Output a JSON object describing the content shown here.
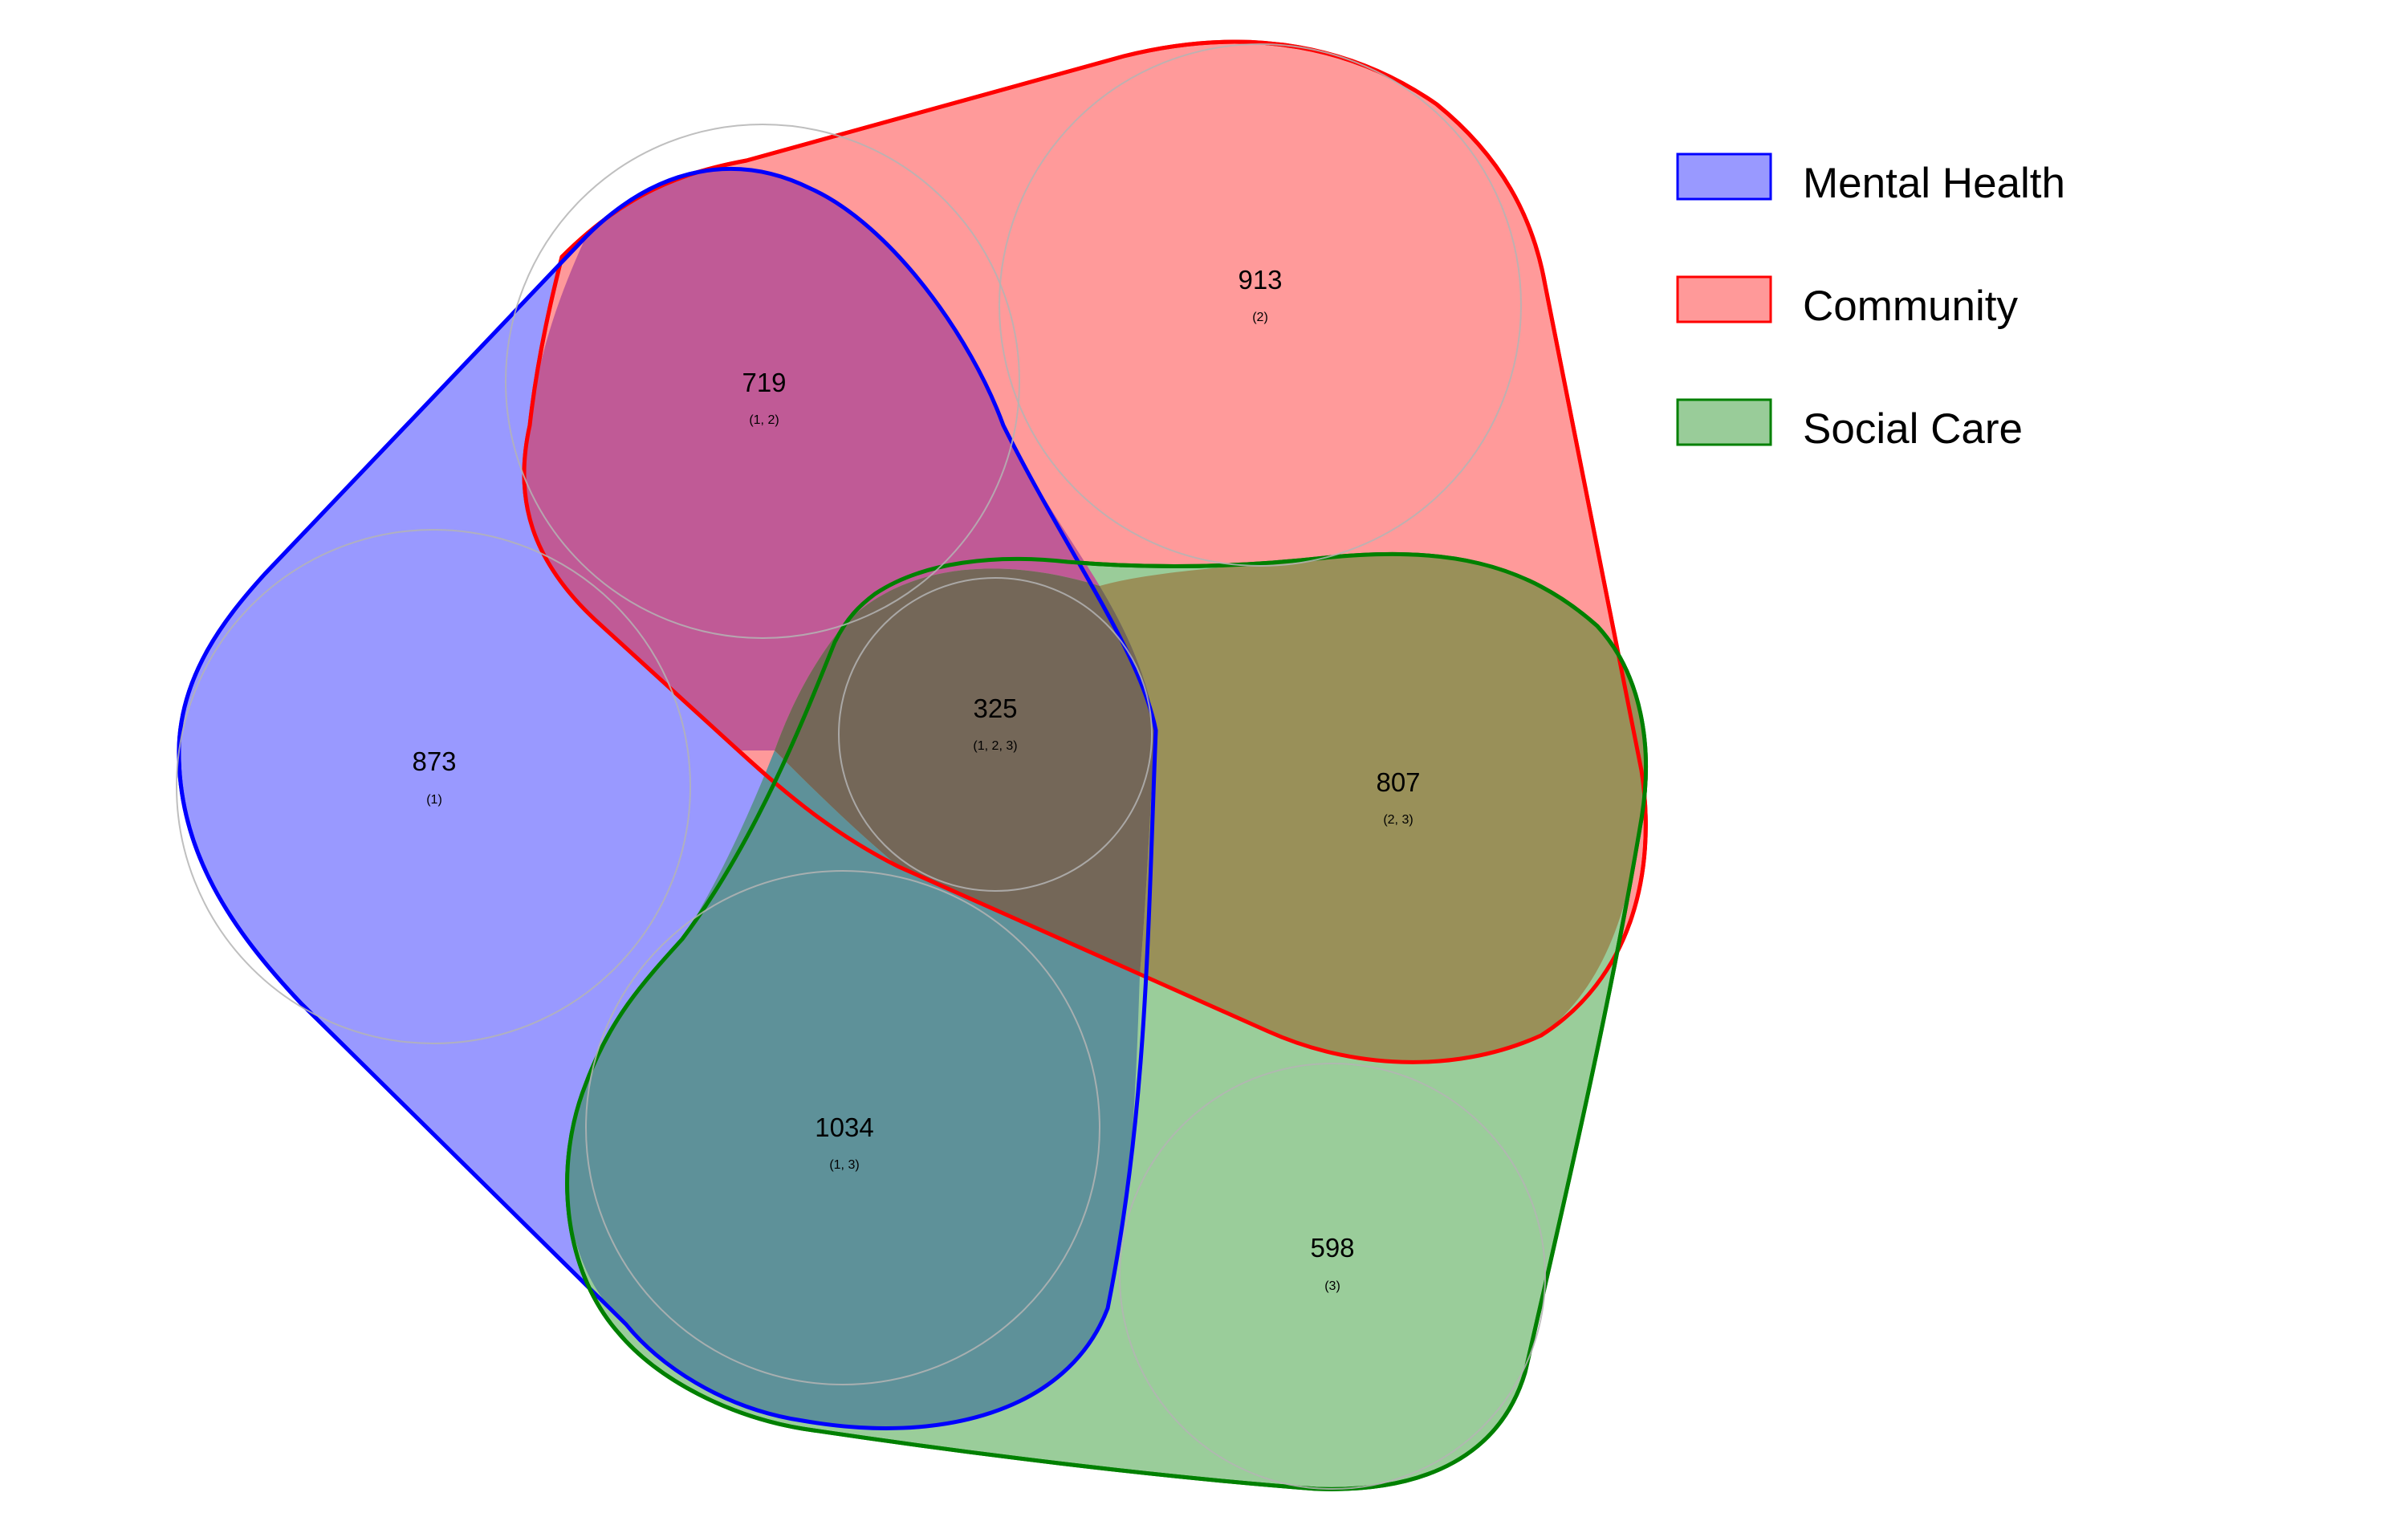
{
  "chart_data": {
    "type": "venn",
    "sets": [
      {
        "id": 1,
        "name": "Mental Health",
        "fill": "#0000ff",
        "stroke": "#0000ff"
      },
      {
        "id": 2,
        "name": "Community",
        "fill": "#ff0000",
        "stroke": "#ff0000"
      },
      {
        "id": 3,
        "name": "Social Care",
        "fill": "#008000",
        "stroke": "#008000"
      }
    ],
    "regions": [
      {
        "key": "r1",
        "value": "873",
        "sets_label": "(1)"
      },
      {
        "key": "r2",
        "value": "913",
        "sets_label": "(2)"
      },
      {
        "key": "r3",
        "value": "598",
        "sets_label": "(3)"
      },
      {
        "key": "r12",
        "value": "719",
        "sets_label": "(1, 2)"
      },
      {
        "key": "r13",
        "value": "1034",
        "sets_label": "(1, 3)"
      },
      {
        "key": "r23",
        "value": "807",
        "sets_label": "(2, 3)"
      },
      {
        "key": "r123",
        "value": "325",
        "sets_label": "(1, 2, 3)"
      }
    ],
    "legend_position": "top-right"
  }
}
